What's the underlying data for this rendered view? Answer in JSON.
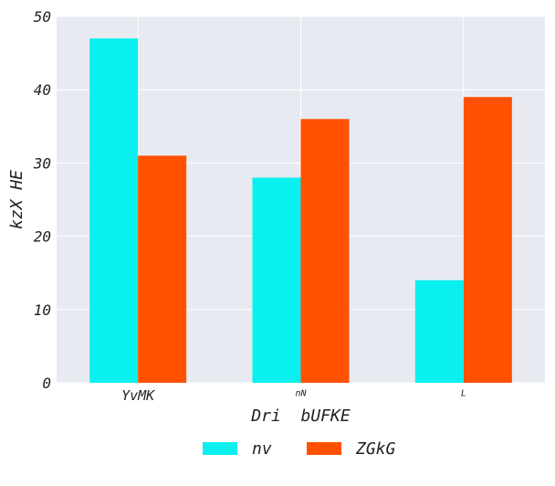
{
  "chart_data": {
    "type": "bar",
    "title": "",
    "xlabel": "Dri  bUFKE",
    "ylabel": "kzX HE",
    "categories": [
      "YvMK",
      "nN",
      "L"
    ],
    "series": [
      {
        "name": "nv",
        "values": [
          47,
          28,
          14
        ]
      },
      {
        "name": "ZGkG",
        "values": [
          31,
          36,
          39
        ]
      }
    ],
    "ylim": [
      0,
      50
    ],
    "yticks": [
      0,
      10,
      20,
      30,
      40,
      50
    ],
    "grid": true,
    "legend_position": "bottom-center"
  },
  "colors": {
    "series": [
      "#0af0ee",
      "#ff5100"
    ],
    "plot_background": "#e8eaf2",
    "grid": "#ffffff"
  }
}
